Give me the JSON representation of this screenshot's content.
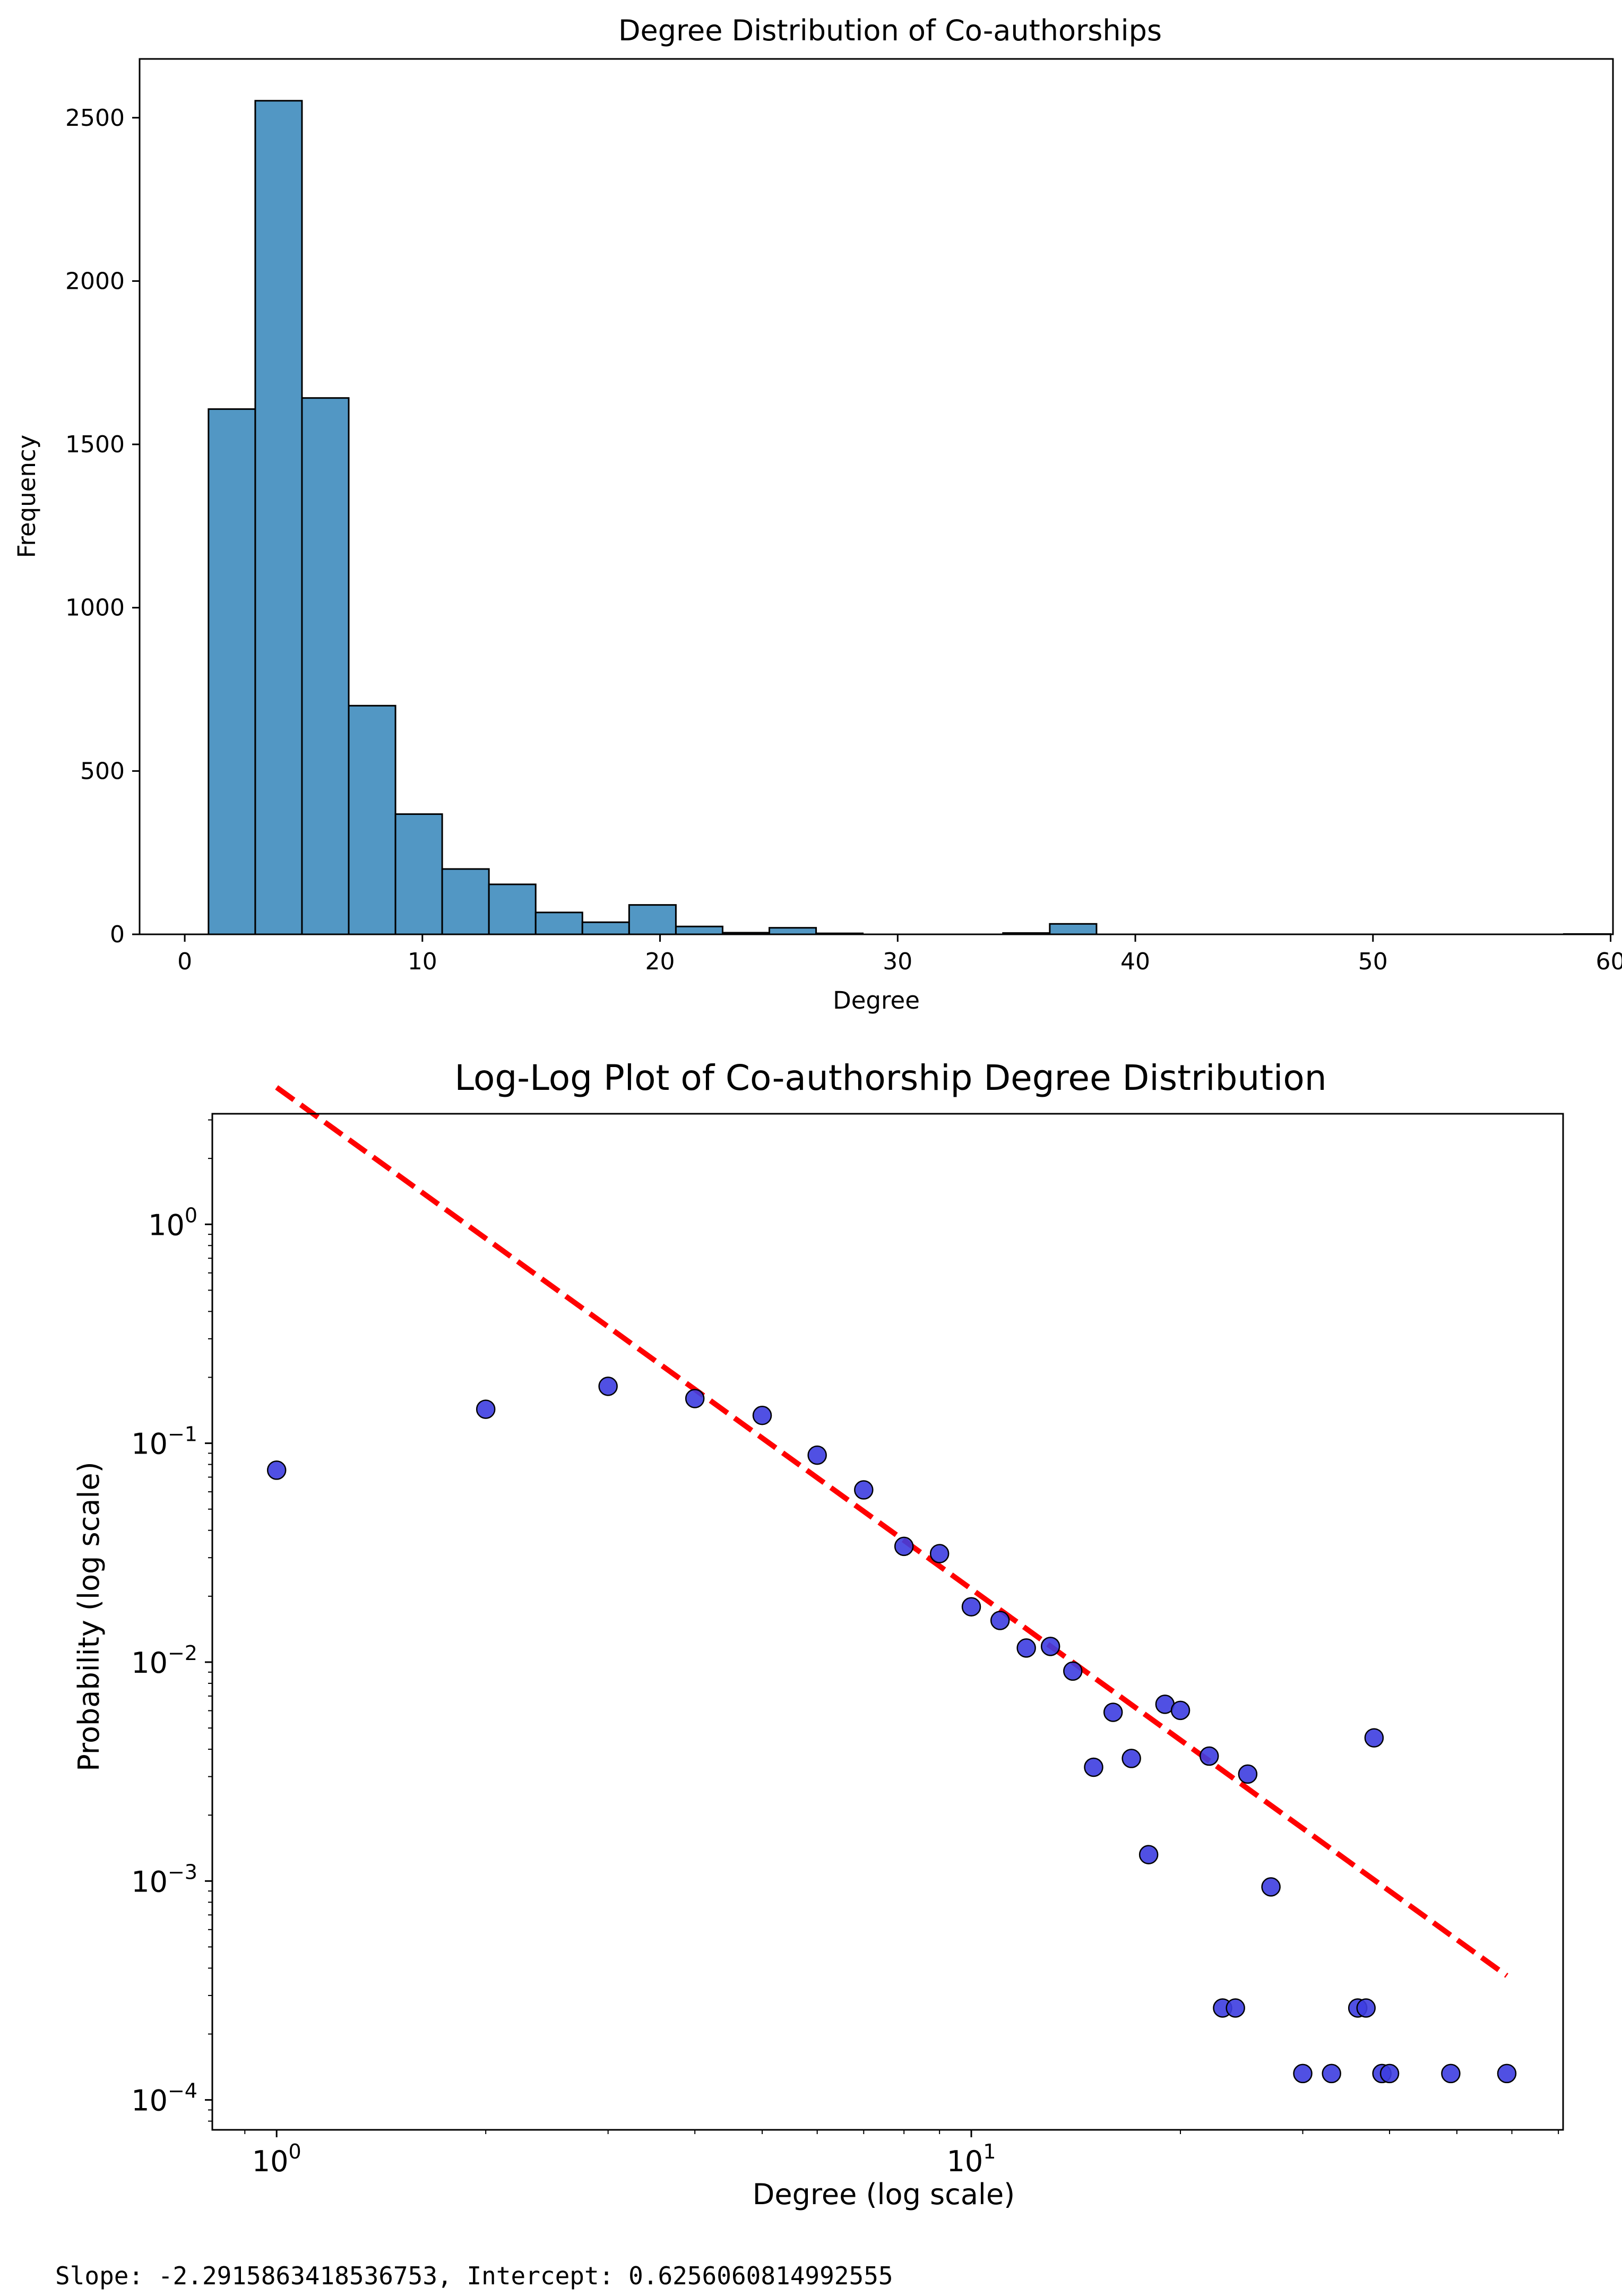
{
  "colors": {
    "bar_fill": "#5297c4",
    "bar_edge": "#000000",
    "marker_fill": "#3d3de0",
    "marker_edge": "#000000",
    "fit_line": "#ff0000"
  },
  "chart_data": [
    {
      "type": "bar",
      "title": "Degree Distribution of Co-authorships",
      "xlabel": "Degree",
      "ylabel": "Frequency",
      "xlim": [
        -1.9,
        60.1
      ],
      "ylim": [
        0,
        2680
      ],
      "xticks": [
        0,
        10,
        20,
        30,
        40,
        50,
        60
      ],
      "xtick_labels": [
        "0",
        "10",
        "20",
        "30",
        "40",
        "50",
        "60"
      ],
      "yticks": [
        0,
        500,
        1000,
        1500,
        2000,
        2500
      ],
      "ytick_labels": [
        "0",
        "500",
        "1000",
        "1500",
        "2000",
        "2500"
      ],
      "bin_edges": [
        1.0,
        2.967,
        4.933,
        6.9,
        8.867,
        10.833,
        12.8,
        14.767,
        16.733,
        18.7,
        20.667,
        22.633,
        24.6,
        26.567,
        28.533,
        30.5,
        32.467,
        34.433,
        36.4,
        38.367,
        40.333,
        42.3,
        44.267,
        46.233,
        48.2,
        50.167,
        52.133,
        54.1,
        56.067,
        58.033,
        60.0
      ],
      "values": [
        1608,
        2552,
        1642,
        700,
        368,
        200,
        153,
        67,
        37,
        90,
        24,
        5,
        20,
        3,
        0,
        0,
        0,
        4,
        32,
        0,
        0,
        0,
        0,
        0,
        0,
        0,
        0,
        0,
        0,
        1
      ]
    },
    {
      "type": "scatter",
      "title": "Log-Log Plot of Co-authorship Degree Distribution",
      "xlabel": "Degree (log scale)",
      "ylabel": "Probability (log scale)",
      "xscale": "log",
      "yscale": "log",
      "xlim": [
        0.808,
        71.1
      ],
      "ylim": [
        7.3e-05,
        3.2
      ],
      "x_major_ticks": [
        {
          "value": 1,
          "base": "10",
          "exp": "0"
        },
        {
          "value": 10,
          "base": "10",
          "exp": "1"
        }
      ],
      "y_major_ticks": [
        {
          "value": 1,
          "base": "10",
          "exp": "0"
        },
        {
          "value": 0.1,
          "base": "10",
          "exp": "−1"
        },
        {
          "value": 0.01,
          "base": "10",
          "exp": "−2"
        },
        {
          "value": 0.001,
          "base": "10",
          "exp": "−3"
        },
        {
          "value": 0.0001,
          "base": "10",
          "exp": "−4"
        }
      ],
      "x": [
        1,
        2,
        3,
        4,
        5,
        6,
        7,
        8,
        9,
        10,
        11,
        12,
        13,
        14,
        15,
        16,
        17,
        18,
        19,
        20,
        22,
        23,
        24,
        25,
        27,
        30,
        33,
        36,
        37,
        38,
        39,
        40,
        49,
        59
      ],
      "y": [
        0.0753,
        0.143,
        0.182,
        0.16,
        0.134,
        0.0882,
        0.0612,
        0.0338,
        0.0313,
        0.0179,
        0.0155,
        0.0116,
        0.0118,
        0.0091,
        0.00331,
        0.0059,
        0.00363,
        0.00132,
        0.00642,
        0.00602,
        0.00372,
        0.000263,
        0.000263,
        0.00308,
        0.00094,
        0.000132,
        0.000132,
        0.000263,
        0.000263,
        0.00451,
        0.000132,
        0.000132,
        0.000132,
        0.000132
      ],
      "fit": {
        "slope": -2.2915863418536753,
        "intercept": 0.6256060814992555,
        "x_range": [
          1,
          59
        ],
        "style": "dashed"
      }
    }
  ],
  "output": {
    "text": "Slope: -2.2915863418536753, Intercept: 0.6256060814992555"
  }
}
